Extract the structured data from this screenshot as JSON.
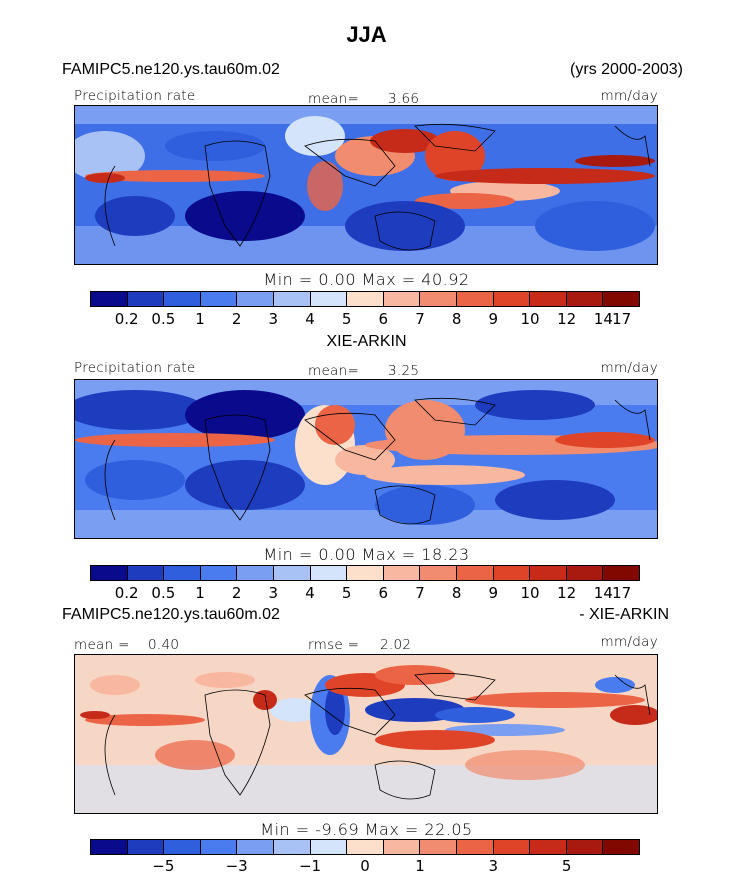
{
  "title": "JJA",
  "panel1": {
    "case_label": "FAMIPC5.ne120.ys.tau60m.02",
    "years_label": "(yrs 2000-2003)",
    "field_label": "Precipitation rate",
    "mean_label": "mean=",
    "mean_value": "3.66",
    "units": "mm/day",
    "minmax": "Min =    0.00  Max =   40.92",
    "min_value": 0.0,
    "max_value": 40.92
  },
  "panel2": {
    "case_label": "XIE-ARKIN",
    "field_label": "Precipitation rate",
    "mean_label": "mean=",
    "mean_value": "3.25",
    "units": "mm/day",
    "minmax": "Min =    0.00  Max =   18.23",
    "min_value": 0.0,
    "max_value": 18.23
  },
  "panel3": {
    "case_label": "FAMIPC5.ne120.ys.tau60m.02",
    "diff_label": "- XIE-ARKIN",
    "mean_label": "mean = ",
    "mean_value": "0.40",
    "rmse_label": "rmse =",
    "rmse_value": "2.02",
    "units": "mm/day",
    "minmax": "Min =   -9.69  Max =   22.05",
    "min_value": -9.69,
    "max_value": 22.05
  },
  "colorbar_precip": {
    "colors": [
      "#0a0a8c",
      "#1e3cbe",
      "#2f5fdc",
      "#4a7cf0",
      "#7a9ef2",
      "#a8c2f5",
      "#d4e4fa",
      "#fde0cc",
      "#f8b8a0",
      "#f28c6e",
      "#ec6446",
      "#e04428",
      "#c62a18",
      "#a81a10",
      "#800800"
    ],
    "tick_labels": [
      "0.2",
      "0.5",
      "1",
      "2",
      "3",
      "4",
      "5",
      "6",
      "7",
      "8",
      "9",
      "10",
      "12",
      "14",
      "17"
    ]
  },
  "colorbar_diff": {
    "colors": [
      "#0a0a8c",
      "#1e3cbe",
      "#2f5fdc",
      "#4a7cf0",
      "#7a9ef2",
      "#a8c2f5",
      "#d4e4fa",
      "#fde0cc",
      "#f8b8a0",
      "#f28c6e",
      "#ec6446",
      "#e04428",
      "#c62a18",
      "#a81a10",
      "#800800"
    ],
    "tick_labels": [
      "−5",
      "−3",
      "−1",
      "0",
      "1",
      "3",
      "5"
    ]
  }
}
